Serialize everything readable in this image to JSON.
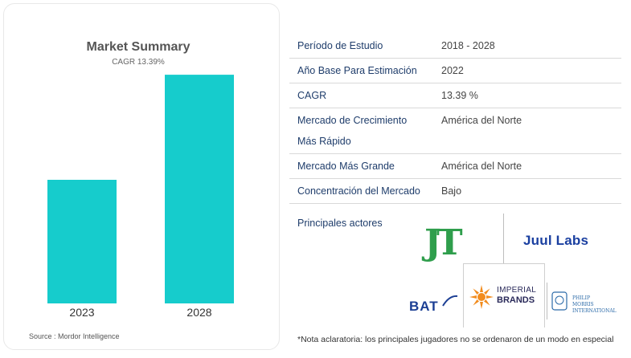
{
  "chart_data": {
    "type": "bar",
    "title": "Market Summary",
    "subtitle": "CAGR 13.39%",
    "categories": [
      "2023",
      "2028"
    ],
    "values": [
      1.0,
      1.85
    ],
    "ylim": [
      0,
      2.0
    ],
    "grid": false,
    "legend": "none",
    "bar_color": "#16cccc",
    "xlabel": "",
    "ylabel": ""
  },
  "source": "Source : Mordor Intelligence",
  "table": {
    "rows": [
      {
        "label": "Período de Estudio",
        "value": "2018 - 2028"
      },
      {
        "label": "Año Base Para Estimación",
        "value": "2022"
      },
      {
        "label": "CAGR",
        "value": "13.39 %"
      },
      {
        "label_line1": "Mercado de Crecimiento",
        "label_line2": "Más Rápido",
        "value": "América del Norte"
      },
      {
        "label": "Mercado Más Grande",
        "value": "América del Norte"
      },
      {
        "label": "Concentración del Mercado",
        "value": "Bajo"
      }
    ]
  },
  "players": {
    "label": "Principales actores",
    "logos": {
      "jt": "JT",
      "juul": "Juul Labs",
      "imperial_top": "IMPERIAL",
      "imperial_bottom": "BRANDS",
      "bat": "BAT",
      "pmi_line1": "PHILIP MORRIS",
      "pmi_line2": "INTERNATIONAL"
    }
  },
  "note": "*Nota aclaratoria: los principales jugadores no se ordenaron de un modo en especial"
}
